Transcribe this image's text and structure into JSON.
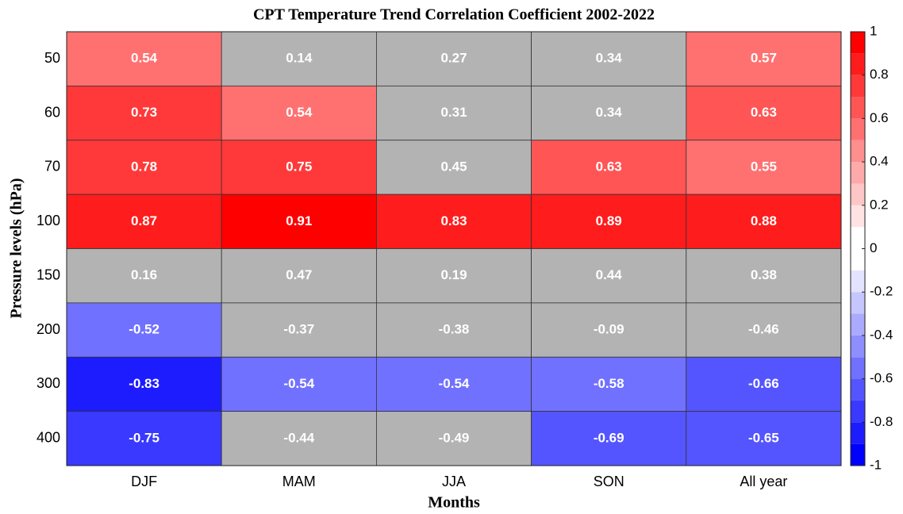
{
  "chart_data": {
    "type": "heatmap",
    "title": "CPT Temperature Trend Correlation Coefficient 2002-2022",
    "xlabel": "Months",
    "ylabel": "Pressure levels (hPa)",
    "x": [
      "DJF",
      "MAM",
      "JJA",
      "SON",
      "All year"
    ],
    "y": [
      "50",
      "60",
      "70",
      "100",
      "150",
      "200",
      "300",
      "400"
    ],
    "z": [
      [
        0.54,
        0.14,
        0.27,
        0.34,
        0.57
      ],
      [
        0.73,
        0.54,
        0.31,
        0.34,
        0.63
      ],
      [
        0.78,
        0.75,
        0.45,
        0.63,
        0.55
      ],
      [
        0.87,
        0.91,
        0.83,
        0.89,
        0.88
      ],
      [
        0.16,
        0.47,
        0.19,
        0.44,
        0.38
      ],
      [
        -0.52,
        -0.37,
        -0.38,
        -0.09,
        -0.46
      ],
      [
        -0.83,
        -0.54,
        -0.54,
        -0.58,
        -0.66
      ],
      [
        -0.75,
        -0.44,
        -0.49,
        -0.69,
        -0.65
      ]
    ],
    "significant": [
      [
        true,
        false,
        false,
        false,
        true
      ],
      [
        true,
        true,
        false,
        false,
        true
      ],
      [
        true,
        true,
        false,
        true,
        true
      ],
      [
        true,
        true,
        true,
        true,
        true
      ],
      [
        false,
        false,
        false,
        false,
        false
      ],
      [
        true,
        false,
        false,
        false,
        false
      ],
      [
        true,
        true,
        true,
        true,
        true
      ],
      [
        true,
        false,
        false,
        true,
        true
      ]
    ],
    "mask_color": "#b3b3b3",
    "positive_color": "#ff0000",
    "negative_color": "#0000ff",
    "clim": [
      -1,
      1
    ],
    "levels": 20,
    "colorbar_ticks": [
      1,
      0.8,
      0.6,
      0.4,
      0.2,
      0,
      -0.2,
      -0.4,
      -0.6,
      -0.8,
      -1
    ]
  }
}
